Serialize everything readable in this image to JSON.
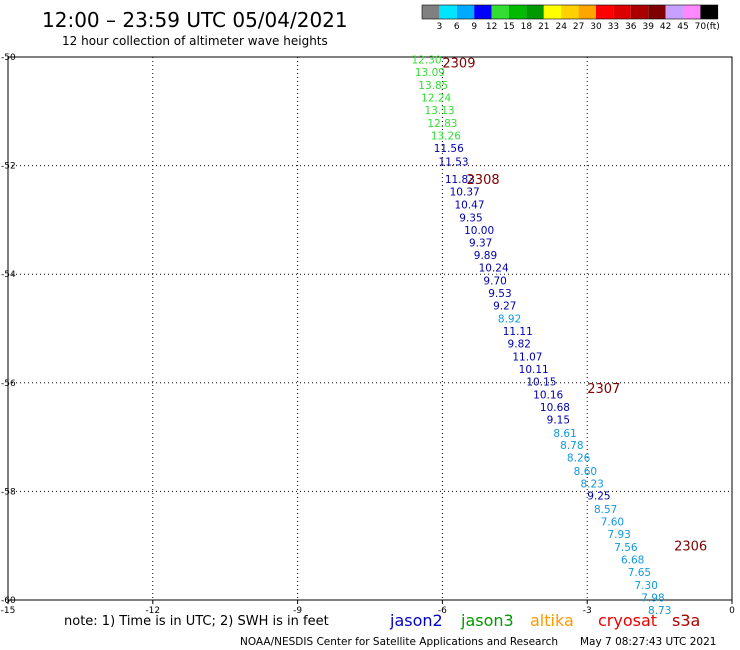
{
  "header": {
    "title": "12:00 – 23:59 UTC 05/04/2021",
    "subtitle": "12 hour collection of altimeter wave heights"
  },
  "colorbar": {
    "labels": [
      "3",
      "6",
      "9",
      "12",
      "15",
      "18",
      "21",
      "24",
      "27",
      "30",
      "33",
      "36",
      "39",
      "42",
      "45",
      "70"
    ],
    "unit": "(ft)",
    "colors": [
      "#808080",
      "#00e5ff",
      "#00aaff",
      "#0000ff",
      "#33dd33",
      "#00bb00",
      "#009900",
      "#ffff00",
      "#ffd000",
      "#ffa500",
      "#ff0000",
      "#dd0000",
      "#aa0000",
      "#800000",
      "#c8a0ff",
      "#ff88ff",
      "#000000"
    ]
  },
  "footer": {
    "note": "note:  1) Time is in UTC;  2) SWH is in feet",
    "credit": "NOAA/NESDIS Center for Satellite Applications and Research",
    "timestamp": "May  7 08:27:43 UTC 2021"
  },
  "legend": [
    {
      "name": "jason2",
      "color": "#0000cc"
    },
    {
      "name": "jason3",
      "color": "#009900"
    },
    {
      "name": "altika",
      "color": "#ff9900"
    },
    {
      "name": "cryosat",
      "color": "#ee0000"
    },
    {
      "name": "s3a",
      "color": "#aa0000"
    }
  ],
  "chart_data": {
    "type": "scatter",
    "xlim": [
      -15,
      0
    ],
    "ylim": [
      -60,
      -50
    ],
    "xticks": [
      "-15",
      "-12",
      "-9",
      "-6",
      "-3",
      "0"
    ],
    "yticks": [
      "-50",
      "-52",
      "-54",
      "-56",
      "-58",
      "-60"
    ],
    "grid": true,
    "pass_labels": [
      {
        "text": "2309",
        "x": -6.0,
        "y": -50.1
      },
      {
        "text": "2308",
        "x": -5.5,
        "y": -52.25
      },
      {
        "text": "2307",
        "x": -3.0,
        "y": -56.1
      },
      {
        "text": "2306",
        "x": -1.2,
        "y": -59.0
      }
    ],
    "points": [
      {
        "x": -6.64,
        "y": -50.05,
        "v": "12.30",
        "c": "#33dd33"
      },
      {
        "x": -6.57,
        "y": -50.28,
        "v": "13.09",
        "c": "#33dd33"
      },
      {
        "x": -6.5,
        "y": -50.52,
        "v": "13.85",
        "c": "#33dd33"
      },
      {
        "x": -6.44,
        "y": -50.75,
        "v": "12.24",
        "c": "#33dd33"
      },
      {
        "x": -6.37,
        "y": -50.98,
        "v": "13.13",
        "c": "#33dd33"
      },
      {
        "x": -6.31,
        "y": -51.22,
        "v": "12.83",
        "c": "#33dd33"
      },
      {
        "x": -6.24,
        "y": -51.45,
        "v": "13.26",
        "c": "#33dd33"
      },
      {
        "x": -6.18,
        "y": -51.68,
        "v": "11.56",
        "c": "#0000aa"
      },
      {
        "x": -6.08,
        "y": -51.92,
        "v": "11.53",
        "c": "#0000aa"
      },
      {
        "x": -5.95,
        "y": -52.25,
        "v": "11.83",
        "c": "#0000aa"
      },
      {
        "x": -5.85,
        "y": -52.48,
        "v": "10.37",
        "c": "#0000aa"
      },
      {
        "x": -5.75,
        "y": -52.72,
        "v": "10.47",
        "c": "#0000aa"
      },
      {
        "x": -5.65,
        "y": -52.96,
        "v": "9.35",
        "c": "#0000aa"
      },
      {
        "x": -5.55,
        "y": -53.19,
        "v": "10.00",
        "c": "#0000aa"
      },
      {
        "x": -5.45,
        "y": -53.42,
        "v": "9.37",
        "c": "#0000aa"
      },
      {
        "x": -5.35,
        "y": -53.65,
        "v": "9.89",
        "c": "#0000aa"
      },
      {
        "x": -5.25,
        "y": -53.88,
        "v": "10.24",
        "c": "#0000aa"
      },
      {
        "x": -5.15,
        "y": -54.12,
        "v": "9.70",
        "c": "#0000aa"
      },
      {
        "x": -5.05,
        "y": -54.35,
        "v": "9.53",
        "c": "#0000aa"
      },
      {
        "x": -4.95,
        "y": -54.58,
        "v": "9.27",
        "c": "#0000aa"
      },
      {
        "x": -4.85,
        "y": -54.82,
        "v": "8.92",
        "c": "#1199dd"
      },
      {
        "x": -4.75,
        "y": -55.05,
        "v": "11.11",
        "c": "#0000aa"
      },
      {
        "x": -4.65,
        "y": -55.28,
        "v": "9.82",
        "c": "#0000aa"
      },
      {
        "x": -4.55,
        "y": -55.52,
        "v": "11.07",
        "c": "#0000aa"
      },
      {
        "x": -4.42,
        "y": -55.75,
        "v": "10.11",
        "c": "#0000aa"
      },
      {
        "x": -4.26,
        "y": -55.98,
        "v": "10.15",
        "c": "#0000aa"
      },
      {
        "x": -4.12,
        "y": -56.22,
        "v": "10.16",
        "c": "#0000aa"
      },
      {
        "x": -3.98,
        "y": -56.45,
        "v": "10.68",
        "c": "#0000aa"
      },
      {
        "x": -3.84,
        "y": -56.68,
        "v": "9.15",
        "c": "#0000aa"
      },
      {
        "x": -3.7,
        "y": -56.92,
        "v": "8.61",
        "c": "#1199dd"
      },
      {
        "x": -3.56,
        "y": -57.15,
        "v": "8.78",
        "c": "#1199dd"
      },
      {
        "x": -3.42,
        "y": -57.38,
        "v": "8.26",
        "c": "#1199dd"
      },
      {
        "x": -3.28,
        "y": -57.62,
        "v": "8.60",
        "c": "#1199dd"
      },
      {
        "x": -3.14,
        "y": -57.85,
        "v": "8.23",
        "c": "#1199dd"
      },
      {
        "x": -3.0,
        "y": -58.08,
        "v": "9.25",
        "c": "#0000aa"
      },
      {
        "x": -2.86,
        "y": -58.32,
        "v": "8.57",
        "c": "#1199dd"
      },
      {
        "x": -2.72,
        "y": -58.55,
        "v": "7.60",
        "c": "#1199dd"
      },
      {
        "x": -2.58,
        "y": -58.78,
        "v": "7.93",
        "c": "#1199dd"
      },
      {
        "x": -2.44,
        "y": -59.02,
        "v": "7.56",
        "c": "#1199dd"
      },
      {
        "x": -2.3,
        "y": -59.25,
        "v": "6.68",
        "c": "#1199dd"
      },
      {
        "x": -2.16,
        "y": -59.48,
        "v": "7.65",
        "c": "#1199dd"
      },
      {
        "x": -2.02,
        "y": -59.72,
        "v": "7.30",
        "c": "#1199dd"
      },
      {
        "x": -1.88,
        "y": -59.95,
        "v": "7.98",
        "c": "#1199dd"
      },
      {
        "x": -1.74,
        "y": -60.18,
        "v": "8.73",
        "c": "#1199dd"
      }
    ]
  }
}
